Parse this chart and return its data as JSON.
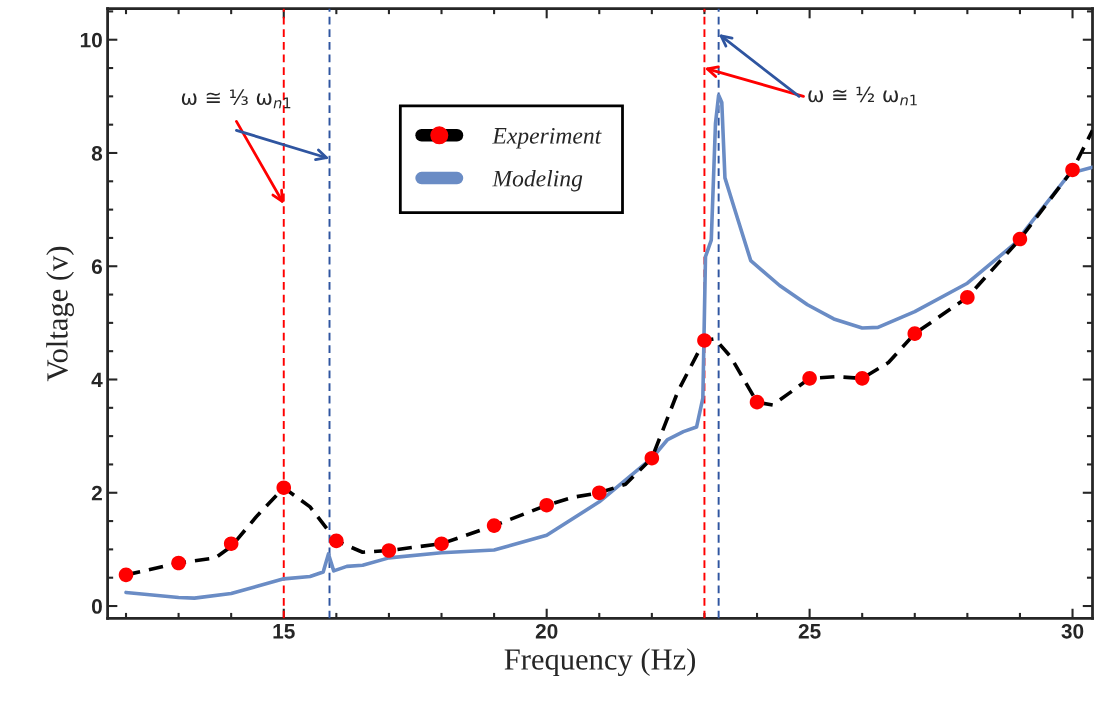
{
  "chart_data": {
    "type": "line",
    "xlabel": "Frequency (Hz)",
    "ylabel": "Voltage (v)",
    "xlim": [
      11.65,
      30.38
    ],
    "ylim": [
      -0.22,
      10.55
    ],
    "xticks": [
      15,
      20,
      25,
      30
    ],
    "yticks": [
      0,
      2,
      4,
      6,
      8,
      10
    ],
    "grid": false,
    "legend": "top",
    "series": [
      {
        "name": "Experiment",
        "type": "scatter",
        "color": "#ff0000",
        "marker": "circle",
        "x": [
          12,
          13,
          14,
          15,
          16,
          17,
          18,
          19,
          20,
          21,
          22,
          23,
          24,
          25,
          26,
          27,
          28,
          29,
          30
        ],
        "values": [
          0.55,
          0.76,
          1.1,
          2.09,
          1.15,
          0.98,
          1.1,
          1.42,
          1.78,
          2.0,
          2.61,
          4.69,
          3.6,
          4.02,
          4.02,
          4.81,
          5.45,
          6.48,
          7.7
        ]
      },
      {
        "color": "#000000",
        "line_style": "dashed",
        "x": [
          12,
          13,
          13.7,
          14,
          14.5,
          15,
          15.5,
          16,
          16.5,
          17,
          18,
          19,
          20,
          20.5,
          21,
          21.5,
          22,
          22.5,
          23,
          23.2,
          23.5,
          24,
          24.3,
          24.6,
          25,
          25.5,
          26,
          26.5,
          27,
          28,
          29,
          30,
          30.38
        ],
        "values": [
          0.55,
          0.76,
          0.85,
          1.05,
          1.6,
          2.09,
          1.75,
          1.15,
          0.95,
          0.98,
          1.1,
          1.42,
          1.78,
          1.92,
          2.0,
          2.15,
          2.61,
          3.8,
          4.69,
          4.72,
          4.4,
          3.6,
          3.55,
          3.75,
          4.02,
          4.05,
          4.02,
          4.3,
          4.81,
          5.45,
          6.48,
          7.7,
          8.4
        ]
      },
      {
        "name": "Modeling",
        "color": "#6a8cc5",
        "line_style": "solid",
        "x": [
          12,
          13,
          13.3,
          14,
          15,
          15.5,
          15.75,
          15.85,
          15.95,
          16.2,
          16.5,
          17,
          18,
          19,
          20,
          21,
          22,
          22.3,
          22.6,
          22.85,
          22.97,
          23.02,
          23.13,
          23.21,
          23.27,
          23.33,
          23.39,
          23.56,
          23.88,
          24.43,
          24.96,
          25.46,
          26.0,
          26.3,
          27.0,
          28.0,
          28.89,
          29.95,
          30.38
        ],
        "values": [
          0.24,
          0.15,
          0.14,
          0.22,
          0.48,
          0.52,
          0.6,
          0.92,
          0.62,
          0.7,
          0.72,
          0.85,
          0.94,
          0.99,
          1.25,
          1.84,
          2.61,
          2.94,
          3.08,
          3.16,
          3.67,
          6.17,
          6.46,
          8.52,
          9.02,
          8.89,
          7.56,
          7.05,
          6.1,
          5.66,
          5.32,
          5.07,
          4.91,
          4.92,
          5.2,
          5.7,
          6.39,
          7.64,
          7.75
        ]
      }
    ],
    "ref_lines": [
      {
        "axis": "x",
        "value": 15,
        "color": "#ff0000",
        "line_style": "dashed"
      },
      {
        "axis": "x",
        "value": 15.87,
        "color": "#2f55a0",
        "line_style": "dashed"
      },
      {
        "axis": "x",
        "value": 23,
        "color": "#ff0000",
        "line_style": "dashed"
      },
      {
        "axis": "x",
        "value": 23.27,
        "color": "#2f55a0",
        "line_style": "dashed"
      }
    ],
    "annotations": [
      {
        "text": "ω ≅ ⅓ ω$_{n1}$",
        "x": 15,
        "y": 7.1
      },
      {
        "text": "ω ≅ ½ ω$_{n1}$",
        "x": 23,
        "y": 9.5
      }
    ]
  }
}
